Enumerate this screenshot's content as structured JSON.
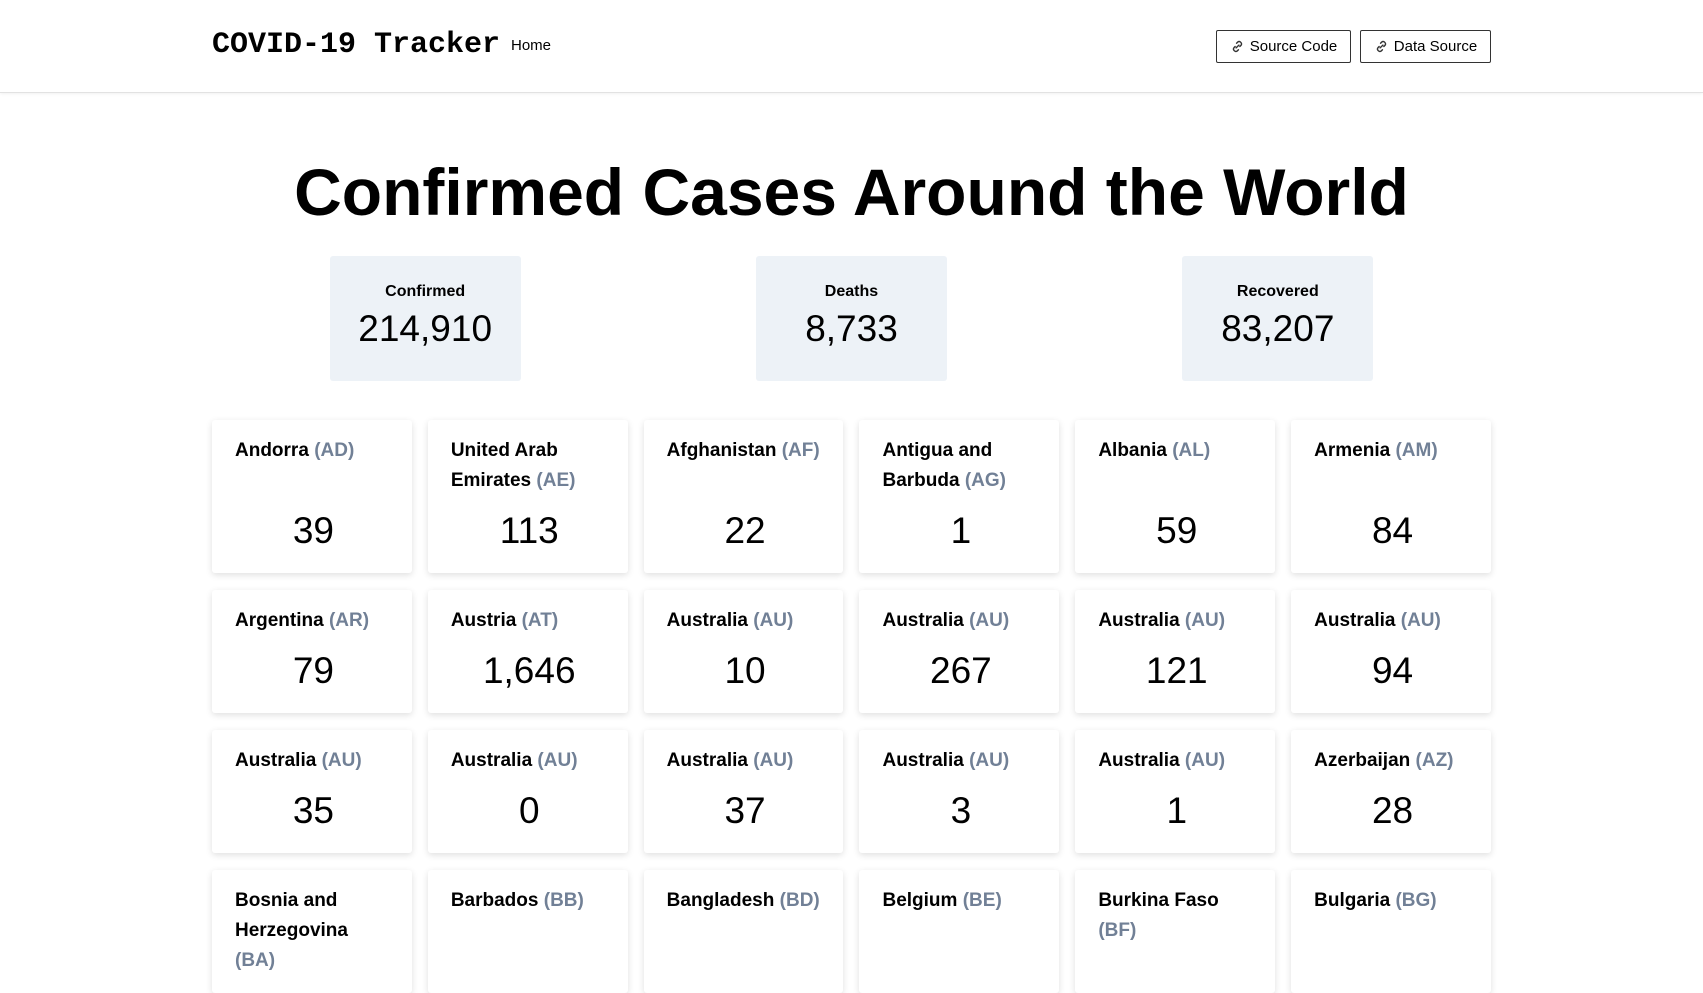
{
  "header": {
    "title": "COVID-19 Tracker",
    "nav": [
      "Home"
    ],
    "buttons": [
      "Source Code",
      "Data Source"
    ]
  },
  "heading": "Confirmed Cases Around the World",
  "stats": [
    {
      "label": "Confirmed",
      "value": "214,910"
    },
    {
      "label": "Deaths",
      "value": "8,733"
    },
    {
      "label": "Recovered",
      "value": "83,207"
    }
  ],
  "countries": [
    {
      "name": "Andorra",
      "code": "(AD)",
      "value": "39"
    },
    {
      "name": "United Arab Emirates",
      "code": "(AE)",
      "value": "113"
    },
    {
      "name": "Afghanistan",
      "code": "(AF)",
      "value": "22"
    },
    {
      "name": "Antigua and Barbuda",
      "code": "(AG)",
      "value": "1"
    },
    {
      "name": "Albania",
      "code": "(AL)",
      "value": "59"
    },
    {
      "name": "Armenia",
      "code": "(AM)",
      "value": "84"
    },
    {
      "name": "Argentina",
      "code": "(AR)",
      "value": "79"
    },
    {
      "name": "Austria",
      "code": "(AT)",
      "value": "1,646"
    },
    {
      "name": "Australia",
      "code": "(AU)",
      "value": "10"
    },
    {
      "name": "Australia",
      "code": "(AU)",
      "value": "267"
    },
    {
      "name": "Australia",
      "code": "(AU)",
      "value": "121"
    },
    {
      "name": "Australia",
      "code": "(AU)",
      "value": "94"
    },
    {
      "name": "Australia",
      "code": "(AU)",
      "value": "35"
    },
    {
      "name": "Australia",
      "code": "(AU)",
      "value": "0"
    },
    {
      "name": "Australia",
      "code": "(AU)",
      "value": "37"
    },
    {
      "name": "Australia",
      "code": "(AU)",
      "value": "3"
    },
    {
      "name": "Australia",
      "code": "(AU)",
      "value": "1"
    },
    {
      "name": "Azerbaijan",
      "code": "(AZ)",
      "value": "28"
    },
    {
      "name": "Bosnia and Herzegovina",
      "code": "(BA)"
    },
    {
      "name": "Barbados",
      "code": "(BB)"
    },
    {
      "name": "Bangladesh",
      "code": "(BD)"
    },
    {
      "name": "Belgium",
      "code": "(BE)"
    },
    {
      "name": "Burkina Faso",
      "code": "(BF)"
    },
    {
      "name": "Bulgaria",
      "code": "(BG)"
    }
  ]
}
